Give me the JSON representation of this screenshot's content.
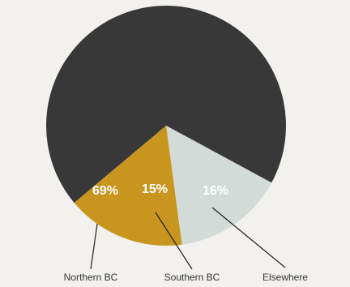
{
  "chart_data": {
    "type": "pie",
    "slices": [
      {
        "name": "Northern BC",
        "value": 69,
        "label": "69%",
        "color": "#383838",
        "label_color": "#ffffff"
      },
      {
        "name": "Southern BC",
        "value": 15,
        "label": "15%",
        "color": "#d3dbd8",
        "label_color": "#ffffff"
      },
      {
        "name": "Elsewhere",
        "value": 16,
        "label": "16%",
        "color": "#c8961e",
        "label_color": "#ffffff"
      }
    ]
  }
}
